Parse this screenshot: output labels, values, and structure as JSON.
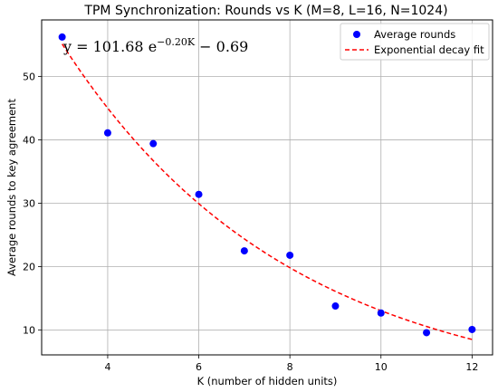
{
  "chart_data": {
    "type": "scatter",
    "title": "TPM Synchronization: Rounds vs K (M=8, L=16, N=1024)",
    "xlabel": "K (number of hidden units)",
    "ylabel": "Average rounds to key agreement",
    "xlim": [
      2.55,
      12.45
    ],
    "ylim": [
      6.1,
      58.9
    ],
    "xticks": [
      4,
      6,
      8,
      10,
      12
    ],
    "yticks": [
      10,
      20,
      30,
      40,
      50
    ],
    "grid": true,
    "legend_position": "top-right",
    "equation": {
      "prefix": "y = 101.68 e",
      "exponent": "−0.20K",
      "suffix": " − 0.69"
    },
    "series": [
      {
        "name": "Average rounds",
        "kind": "points",
        "color": "#0000ff",
        "x": [
          3,
          4,
          5,
          6,
          7,
          8,
          9,
          10,
          11,
          12
        ],
        "y": [
          56.2,
          41.1,
          39.4,
          31.4,
          22.5,
          21.8,
          13.8,
          12.7,
          9.6,
          10.1
        ]
      },
      {
        "name": "Exponential decay fit",
        "kind": "curve",
        "color": "#ff0000",
        "style": "dashed",
        "a": 101.68,
        "b": 0.2,
        "c": -0.69,
        "x_range": [
          3,
          12
        ]
      }
    ]
  }
}
